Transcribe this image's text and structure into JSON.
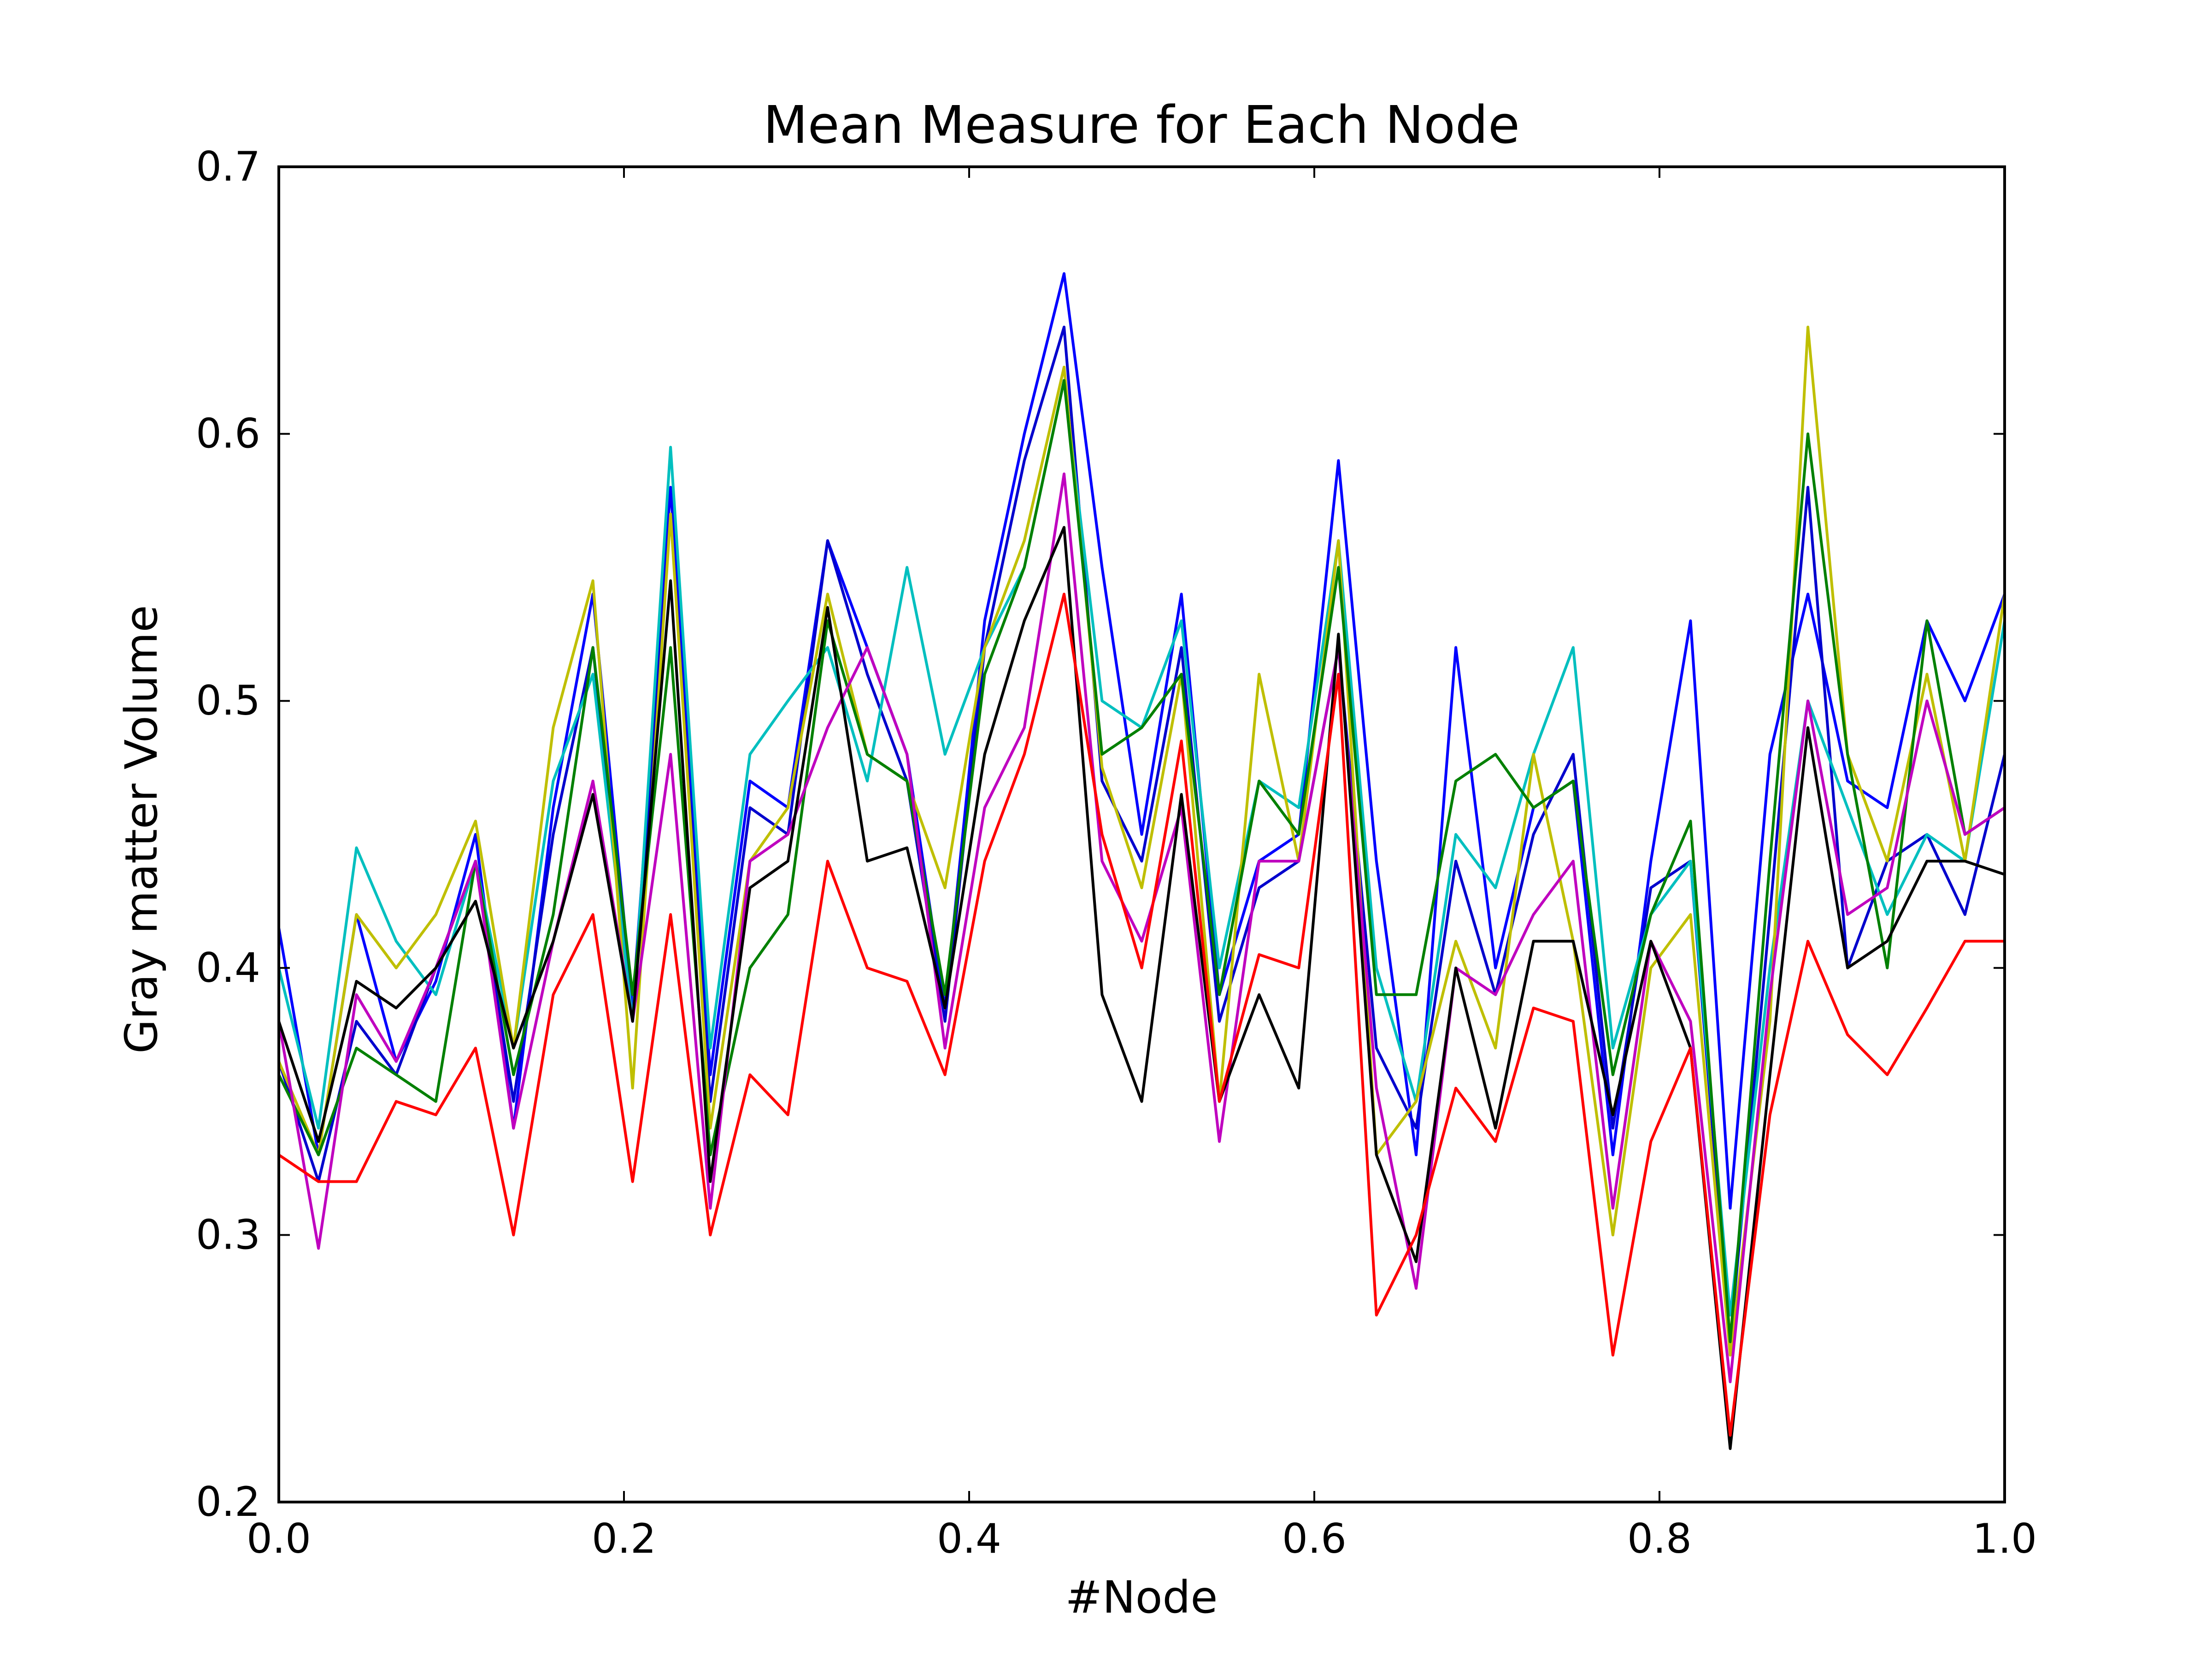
{
  "chart_data": {
    "type": "line",
    "title": "Mean Measure for Each Node",
    "xlabel": "#Node",
    "ylabel": "Gray matter Volume",
    "xlim": [
      0.0,
      1.0
    ],
    "ylim": [
      0.2,
      0.7
    ],
    "xticks": [
      "0.0",
      "0.2",
      "0.4",
      "0.6",
      "0.8",
      "1.0"
    ],
    "yticks": [
      "0.2",
      "0.3",
      "0.4",
      "0.5",
      "0.6",
      "0.7"
    ],
    "grid": false,
    "legend": "none",
    "x": [
      0.0,
      0.023,
      0.045,
      0.068,
      0.091,
      0.114,
      0.136,
      0.159,
      0.182,
      0.205,
      0.227,
      0.25,
      0.273,
      0.295,
      0.318,
      0.341,
      0.364,
      0.386,
      0.409,
      0.432,
      0.455,
      0.477,
      0.5,
      0.523,
      0.545,
      0.568,
      0.591,
      0.614,
      0.636,
      0.659,
      0.682,
      0.705,
      0.727,
      0.75,
      0.773,
      0.795,
      0.818,
      0.841,
      0.864,
      0.886,
      0.909,
      0.932,
      0.955,
      0.977,
      1.0
    ],
    "series": [
      {
        "color": "#0000ff",
        "values": [
          0.415,
          0.33,
          0.42,
          0.365,
          0.395,
          0.45,
          0.34,
          0.46,
          0.54,
          0.385,
          0.58,
          0.36,
          0.47,
          0.46,
          0.56,
          0.52,
          0.48,
          0.385,
          0.53,
          0.6,
          0.66,
          0.55,
          0.45,
          0.54,
          0.39,
          0.44,
          0.45,
          0.59,
          0.44,
          0.33,
          0.52,
          0.4,
          0.46,
          0.47,
          0.33,
          0.44,
          0.53,
          0.31,
          0.48,
          0.54,
          0.47,
          0.46,
          0.53,
          0.5,
          0.54
        ]
      },
      {
        "color": "#0000cd",
        "values": [
          0.365,
          0.32,
          0.38,
          0.36,
          0.4,
          0.44,
          0.35,
          0.45,
          0.52,
          0.38,
          0.57,
          0.35,
          0.46,
          0.45,
          0.56,
          0.51,
          0.47,
          0.38,
          0.52,
          0.59,
          0.64,
          0.47,
          0.44,
          0.52,
          0.38,
          0.43,
          0.44,
          0.52,
          0.37,
          0.34,
          0.44,
          0.39,
          0.45,
          0.48,
          0.34,
          0.43,
          0.44,
          0.26,
          0.42,
          0.58,
          0.4,
          0.44,
          0.45,
          0.42,
          0.48
        ]
      },
      {
        "color": "#00bfbf",
        "values": [
          0.4,
          0.34,
          0.445,
          0.41,
          0.39,
          0.44,
          0.37,
          0.47,
          0.51,
          0.38,
          0.595,
          0.37,
          0.48,
          0.5,
          0.52,
          0.47,
          0.55,
          0.48,
          0.52,
          0.55,
          0.62,
          0.5,
          0.49,
          0.53,
          0.4,
          0.47,
          0.46,
          0.56,
          0.4,
          0.35,
          0.45,
          0.43,
          0.48,
          0.52,
          0.37,
          0.42,
          0.44,
          0.27,
          0.4,
          0.5,
          0.46,
          0.42,
          0.45,
          0.44,
          0.53
        ]
      },
      {
        "color": "#bfbf00",
        "values": [
          0.365,
          0.33,
          0.42,
          0.4,
          0.42,
          0.455,
          0.37,
          0.49,
          0.545,
          0.355,
          0.57,
          0.34,
          0.44,
          0.46,
          0.54,
          0.48,
          0.47,
          0.43,
          0.52,
          0.56,
          0.625,
          0.475,
          0.43,
          0.51,
          0.35,
          0.51,
          0.44,
          0.56,
          0.33,
          0.35,
          0.41,
          0.37,
          0.48,
          0.41,
          0.3,
          0.4,
          0.42,
          0.255,
          0.38,
          0.64,
          0.48,
          0.44,
          0.51,
          0.44,
          0.54
        ]
      },
      {
        "color": "#008000",
        "values": [
          0.36,
          0.33,
          0.37,
          0.36,
          0.35,
          0.44,
          0.36,
          0.42,
          0.52,
          0.39,
          0.52,
          0.33,
          0.4,
          0.42,
          0.53,
          0.48,
          0.47,
          0.39,
          0.51,
          0.55,
          0.62,
          0.48,
          0.49,
          0.51,
          0.39,
          0.47,
          0.45,
          0.55,
          0.39,
          0.39,
          0.47,
          0.48,
          0.46,
          0.47,
          0.36,
          0.42,
          0.455,
          0.26,
          0.44,
          0.6,
          0.48,
          0.4,
          0.53,
          0.45,
          0.46
        ]
      },
      {
        "color": "#bf00bf",
        "values": [
          0.38,
          0.295,
          0.39,
          0.365,
          0.4,
          0.44,
          0.34,
          0.41,
          0.47,
          0.38,
          0.48,
          0.31,
          0.44,
          0.45,
          0.49,
          0.52,
          0.48,
          0.37,
          0.46,
          0.49,
          0.585,
          0.44,
          0.41,
          0.46,
          0.335,
          0.44,
          0.44,
          0.52,
          0.355,
          0.28,
          0.4,
          0.39,
          0.42,
          0.44,
          0.31,
          0.41,
          0.38,
          0.245,
          0.39,
          0.5,
          0.42,
          0.43,
          0.5,
          0.45,
          0.46
        ]
      },
      {
        "color": "#000000",
        "values": [
          0.38,
          0.335,
          0.395,
          0.385,
          0.4,
          0.425,
          0.37,
          0.41,
          0.465,
          0.38,
          0.545,
          0.32,
          0.43,
          0.44,
          0.535,
          0.44,
          0.445,
          0.385,
          0.48,
          0.53,
          0.565,
          0.39,
          0.35,
          0.465,
          0.35,
          0.39,
          0.355,
          0.525,
          0.33,
          0.29,
          0.4,
          0.34,
          0.41,
          0.41,
          0.345,
          0.41,
          0.37,
          0.22,
          0.36,
          0.49,
          0.4,
          0.41,
          0.44,
          0.44,
          0.435
        ]
      },
      {
        "color": "#ff0000",
        "values": [
          0.33,
          0.32,
          0.32,
          0.35,
          0.345,
          0.37,
          0.3,
          0.39,
          0.42,
          0.32,
          0.42,
          0.3,
          0.36,
          0.345,
          0.44,
          0.4,
          0.395,
          0.36,
          0.44,
          0.48,
          0.54,
          0.45,
          0.4,
          0.485,
          0.35,
          0.405,
          0.4,
          0.51,
          0.27,
          0.3,
          0.355,
          0.335,
          0.385,
          0.38,
          0.255,
          0.335,
          0.37,
          0.225,
          0.345,
          0.41,
          0.375,
          0.36,
          0.385,
          0.41,
          0.41
        ]
      }
    ]
  }
}
